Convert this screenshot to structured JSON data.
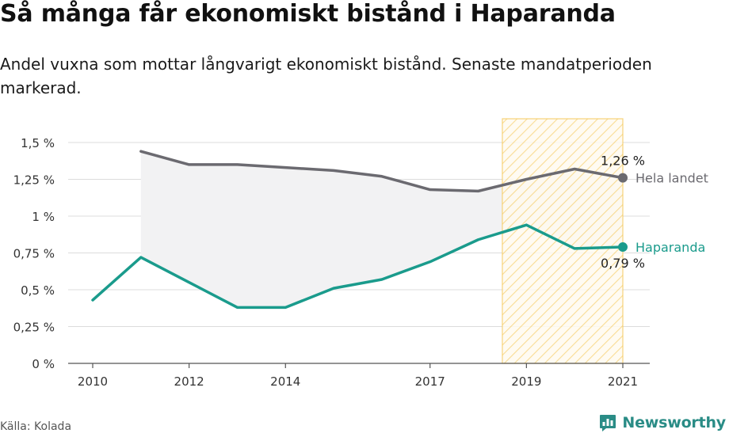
{
  "header": {
    "title": "Så många får ekonomiskt bistånd i Haparanda",
    "subtitle": "Andel vuxna som mottar långvarigt ekonomiskt bistånd. Senaste mandatperioden markerad."
  },
  "footer": {
    "source": "Källa: Kolada",
    "brand": "Newsworthy",
    "brand_icon": "newsworthy-logo-icon",
    "brand_color": "#2a8c86"
  },
  "chart_data": {
    "type": "line",
    "x": [
      2010,
      2011,
      2012,
      2013,
      2014,
      2015,
      2016,
      2017,
      2018,
      2019,
      2020,
      2021
    ],
    "series": [
      {
        "name": "Hela landet",
        "color": "#6b6a70",
        "values": [
          null,
          1.44,
          1.35,
          1.35,
          1.33,
          1.31,
          1.27,
          1.18,
          1.17,
          1.25,
          1.32,
          1.26
        ],
        "end_label": "1,26 %"
      },
      {
        "name": "Haparanda",
        "color": "#1a9b8c",
        "values": [
          0.43,
          0.72,
          0.55,
          0.38,
          0.38,
          0.51,
          0.57,
          0.69,
          0.84,
          0.94,
          0.78,
          0.79
        ],
        "end_label": "0,79 %"
      }
    ],
    "x_ticks": [
      2010,
      2012,
      2014,
      2017,
      2019,
      2021
    ],
    "x_tick_labels": [
      "2010",
      "2012",
      "2014",
      "2017",
      "2019",
      "2021"
    ],
    "y_ticks": [
      0,
      0.25,
      0.5,
      0.75,
      1,
      1.25,
      1.5
    ],
    "y_tick_labels": [
      "0 %",
      "0,25 %",
      "0,5 %",
      "0,75 %",
      "1 %",
      "1,25 %",
      "1,5 %"
    ],
    "xlim": [
      2010,
      2021
    ],
    "ylim": [
      0,
      1.5
    ],
    "highlight_period": [
      2019,
      2021
    ],
    "highlight_color": "#f5c95c",
    "gap_fill_color": "#f2f2f3",
    "grid": true,
    "legend": "inline-right"
  }
}
